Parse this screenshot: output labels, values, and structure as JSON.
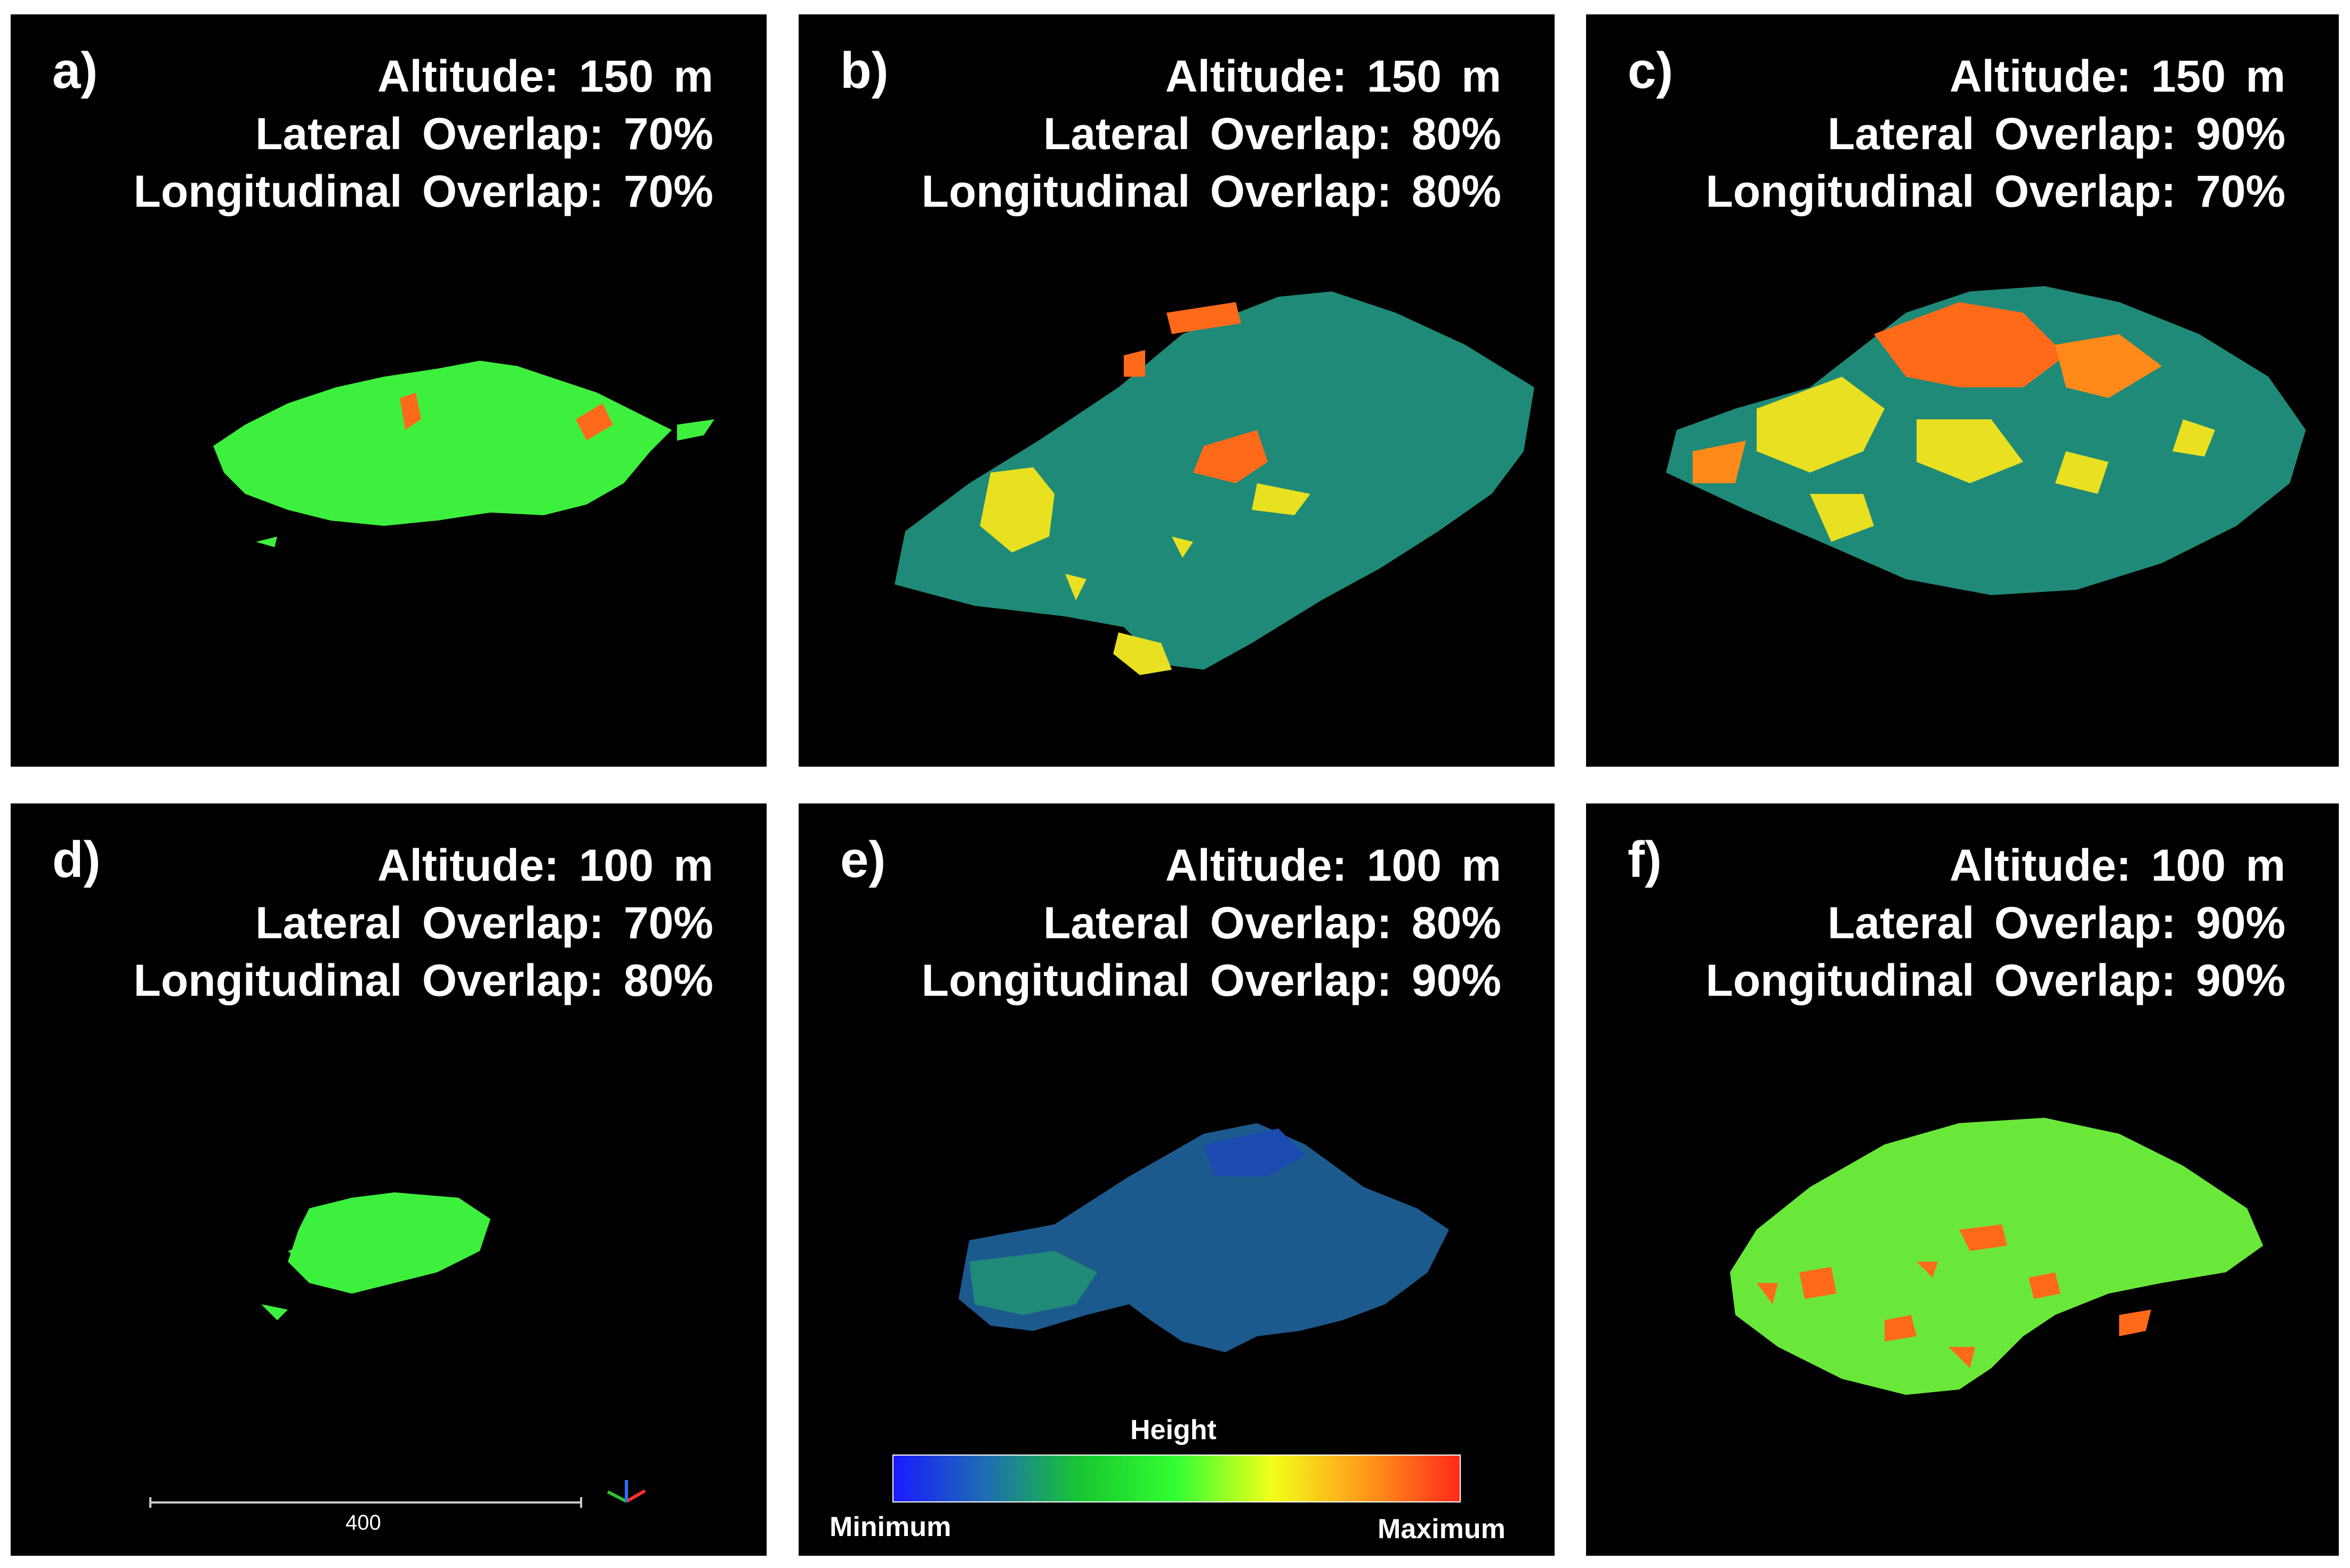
{
  "panels": [
    {
      "label": "a)",
      "altitude": "Altitude:  150 m",
      "lateral": "Lateral  Overlap:  70%",
      "longitudinal": "Longitudinal  Overlap:  70%"
    },
    {
      "label": "b)",
      "altitude": "Altitude:  150 m",
      "lateral": "Lateral  Overlap:  80%",
      "longitudinal": "Longitudinal  Overlap:  80%"
    },
    {
      "label": "c)",
      "altitude": "Altitude:  150 m",
      "lateral": "Lateral  Overlap:  90%",
      "longitudinal": "Longitudinal  Overlap:  70%"
    },
    {
      "label": "d)",
      "altitude": "Altitude:  100 m",
      "lateral": "Lateral  Overlap:  70%",
      "longitudinal": "Longitudinal  Overlap:  80%"
    },
    {
      "label": "e)",
      "altitude": "Altitude:  100 m",
      "lateral": "Lateral  Overlap:  80%",
      "longitudinal": "Longitudinal  Overlap:  90%"
    },
    {
      "label": "f)",
      "altitude": "Altitude:  100 m",
      "lateral": "Lateral  Overlap:  90%",
      "longitudinal": "Longitudinal  Overlap:  90%"
    }
  ],
  "scale_bar": {
    "label": "400"
  },
  "legend": {
    "title": "Height",
    "min_label": "Minimum",
    "max_label": "Maximum",
    "colors": [
      "#1a1aff",
      "#1f6fb0",
      "#18c830",
      "#33ff33",
      "#f2ff1a",
      "#ff9a1a",
      "#ff2a1a"
    ]
  },
  "colors": {
    "background": "#000000",
    "text": "#ffffff",
    "green": "#3ef03e",
    "teal": "#1f8a78",
    "orange": "#ff6a1a",
    "yellow": "#e8e020",
    "blue": "#1c4e9a"
  }
}
